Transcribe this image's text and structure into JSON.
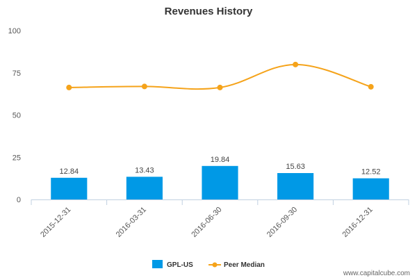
{
  "chart_data": {
    "type": "bar",
    "title": "Revenues History",
    "xlabel": "",
    "ylabel": "",
    "categories": [
      "2015-12-31",
      "2016-03-31",
      "2016-06-30",
      "2016-09-30",
      "2016-12-31"
    ],
    "ylim": [
      0,
      100
    ],
    "yticks": [
      0,
      25,
      50,
      75,
      100
    ],
    "grid": false,
    "legend_position": "bottom",
    "series": [
      {
        "name": "GPL-US",
        "kind": "bar",
        "color": "#0099e6",
        "values": [
          12.84,
          13.43,
          19.84,
          15.63,
          12.52
        ],
        "data_labels": [
          "12.84",
          "13.43",
          "19.84",
          "15.63",
          "12.52"
        ]
      },
      {
        "name": "Peer Median",
        "kind": "line",
        "color": "#f5a31a",
        "values": [
          66.3,
          66.9,
          66.3,
          79.9,
          66.7
        ]
      }
    ],
    "credit": "www.capitalcube.com"
  }
}
